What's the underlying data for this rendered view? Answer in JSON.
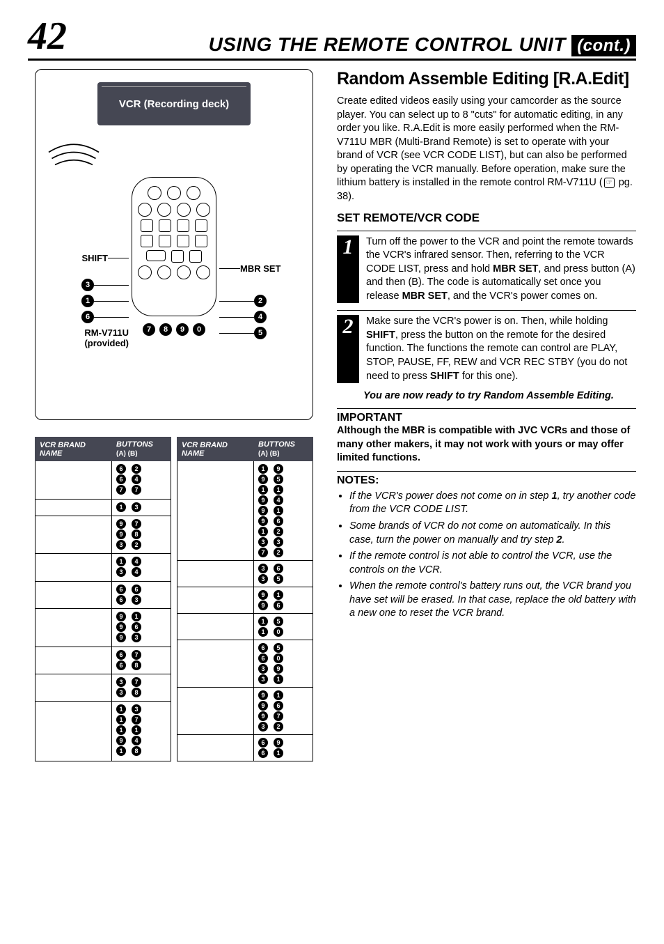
{
  "header": {
    "page_number": "42",
    "title_main": "USING THE REMOTE CONTROL UNIT",
    "title_cont": "(cont.)"
  },
  "diagram": {
    "vcr_label": "VCR (Recording deck)",
    "labels": {
      "shift": "SHIFT",
      "mbr_set": "MBR SET",
      "rm": "RM-V711U",
      "provided": "(provided)"
    },
    "left_call": [
      "3",
      "1",
      "6"
    ],
    "right_call": [
      "2",
      "4",
      "5"
    ],
    "bottom": [
      "7",
      "8",
      "9",
      "0"
    ]
  },
  "table_headers": {
    "brand": "VCR BRAND NAME",
    "buttons": "BUTTONS",
    "ab": "(A)  (B)"
  },
  "table_left": [
    {
      "brand": "",
      "codes": [
        [
          "6",
          "2"
        ],
        [
          "6",
          "4"
        ],
        [
          "7",
          "7"
        ]
      ]
    },
    {
      "brand": "",
      "codes": [
        [
          "1",
          "3"
        ]
      ]
    },
    {
      "brand": "",
      "codes": [
        [
          "9",
          "7"
        ],
        [
          "9",
          "8"
        ],
        [
          "3",
          "2"
        ]
      ]
    },
    {
      "brand": "",
      "codes": [
        [
          "1",
          "4"
        ],
        [
          "3",
          "4"
        ]
      ]
    },
    {
      "brand": "",
      "codes": [
        [
          "6",
          "6"
        ],
        [
          "6",
          "3"
        ]
      ]
    },
    {
      "brand": "",
      "codes": [
        [
          "9",
          "1"
        ],
        [
          "9",
          "6"
        ],
        [
          "9",
          "3"
        ]
      ]
    },
    {
      "brand": "",
      "codes": [
        [
          "6",
          "7"
        ],
        [
          "6",
          "8"
        ]
      ]
    },
    {
      "brand": "",
      "codes": [
        [
          "3",
          "7"
        ],
        [
          "3",
          "8"
        ]
      ]
    },
    {
      "brand": "",
      "codes": [
        [
          "1",
          "3"
        ],
        [
          "1",
          "7"
        ],
        [
          "1",
          "1"
        ],
        [
          "9",
          "4"
        ],
        [
          "1",
          "8"
        ]
      ]
    }
  ],
  "table_right": [
    {
      "brand": "",
      "codes": [
        [
          "1",
          "9"
        ],
        [
          "9",
          "5"
        ],
        [
          "1",
          "1"
        ],
        [
          "9",
          "4"
        ],
        [
          "9",
          "1"
        ],
        [
          "9",
          "6"
        ],
        [
          "1",
          "2"
        ],
        [
          "3",
          "3"
        ],
        [
          "7",
          "2"
        ]
      ]
    },
    {
      "brand": "",
      "codes": [
        [
          "3",
          "6"
        ],
        [
          "3",
          "5"
        ]
      ]
    },
    {
      "brand": "",
      "codes": [
        [
          "9",
          "1"
        ],
        [
          "9",
          "6"
        ]
      ]
    },
    {
      "brand": "",
      "codes": [
        [
          "1",
          "5"
        ],
        [
          "1",
          "0"
        ]
      ]
    },
    {
      "brand": "",
      "codes": [
        [
          "6",
          "5"
        ],
        [
          "6",
          "0"
        ],
        [
          "3",
          "9"
        ],
        [
          "3",
          "1"
        ]
      ]
    },
    {
      "brand": "",
      "codes": [
        [
          "9",
          "1"
        ],
        [
          "9",
          "6"
        ],
        [
          "9",
          "7"
        ],
        [
          "3",
          "2"
        ]
      ]
    },
    {
      "brand": "",
      "codes": [
        [
          "6",
          "9"
        ],
        [
          "6",
          "1"
        ]
      ]
    }
  ],
  "right": {
    "h2": "Random Assemble Editing [R.A.Edit]",
    "intro": "Create edited videos easily using your camcorder as the source player. You can select up to 8 \"cuts\" for automatic editing, in any order you like. R.A.Edit is more easily performed when the RM-V711U MBR (Multi-Brand Remote) is set to operate with your brand of VCR (see VCR CODE LIST), but can also be performed by operating the VCR manually. Before operation, make sure the lithium battery is installed in the remote control RM-V711U (",
    "intro_pg": "☞",
    "intro_end": " pg. 38).",
    "subhead": "SET REMOTE/VCR CODE",
    "step1": "Turn off the power to the VCR and point the remote towards the VCR's infrared sensor. Then, referring to the VCR CODE LIST, press and hold ",
    "step1_b1": "MBR SET",
    "step1_mid": ", and press button (A) and then (B). The code is automatically set once you release ",
    "step1_b2": "MBR SET",
    "step1_end": ", and the VCR's power comes on.",
    "step2": "Make sure the VCR's power is on. Then, while holding ",
    "step2_b1": "SHIFT",
    "step2_mid": ", press the button on the remote for the desired function. The functions the remote can control are PLAY, STOP, PAUSE, FF, REW and VCR REC STBY (you do not need to press ",
    "step2_b2": "SHIFT",
    "step2_end": " for this one).",
    "ready": "You are now ready to try Random Assemble Editing.",
    "important_hdr": "IMPORTANT",
    "important_body": "Although the MBR is compatible with JVC VCRs and those of many other makers, it may not work with yours or may offer limited functions.",
    "notes_hdr": "NOTES:",
    "notes": [
      "If the VCR's power does not come on in step <b>1</b>, try another code from the VCR CODE LIST.",
      "Some brands of VCR do not come on automatically. In this case, turn the power on manually and try step <b>2</b>.",
      "If the remote control is not able to control the VCR, use the controls on the VCR.",
      "When the remote control's battery runs out, the VCR brand you have set will be erased. In that case, replace the old battery with a new one to reset the VCR brand."
    ]
  }
}
